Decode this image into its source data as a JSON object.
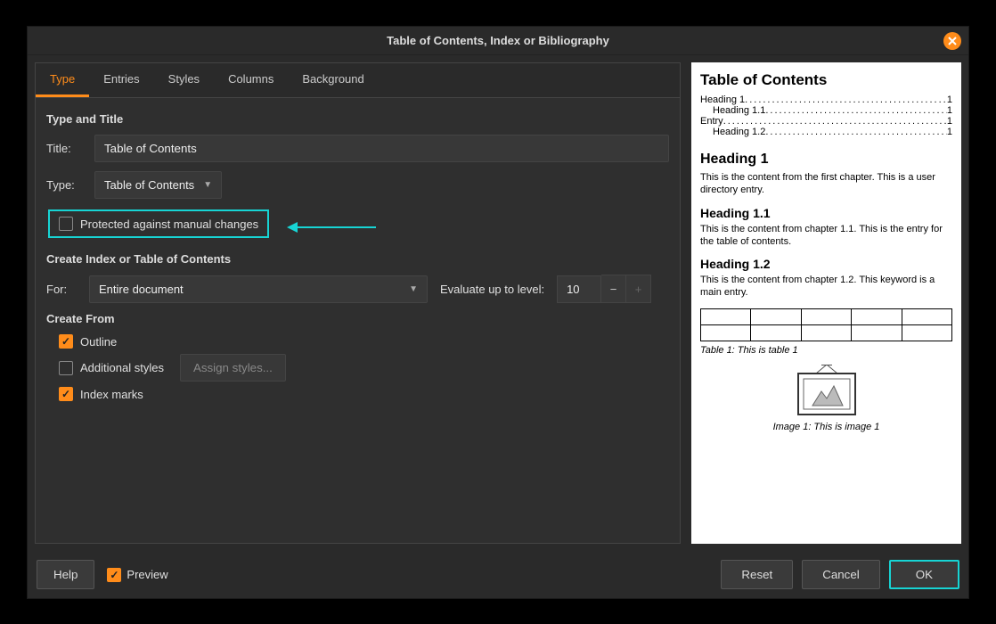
{
  "dialog": {
    "title": "Table of Contents, Index or Bibliography"
  },
  "tabs": {
    "type": "Type",
    "entries": "Entries",
    "styles": "Styles",
    "columns": "Columns",
    "background": "Background"
  },
  "section": {
    "type_and_title": "Type and Title",
    "create_index": "Create Index or Table of Contents",
    "create_from": "Create From"
  },
  "fields": {
    "title_label": "Title:",
    "title_value": "Table of Contents",
    "type_label": "Type:",
    "type_value": "Table of Contents",
    "protected_label": "Protected against manual changes",
    "for_label": "For:",
    "for_value": "Entire document",
    "evaluate_label": "Evaluate up to level:",
    "evaluate_value": "10",
    "outline_label": "Outline",
    "additional_styles_label": "Additional styles",
    "assign_styles_btn": "Assign styles...",
    "index_marks_label": "Index marks"
  },
  "checkboxes": {
    "protected": false,
    "outline": true,
    "additional_styles": false,
    "index_marks": true,
    "preview": true
  },
  "footer": {
    "help": "Help",
    "preview": "Preview",
    "reset": "Reset",
    "cancel": "Cancel",
    "ok": "OK"
  },
  "preview": {
    "toc_title": "Table of Contents",
    "toc": [
      {
        "label": "Heading 1",
        "page": "1",
        "indent": false
      },
      {
        "label": "Heading 1.1",
        "page": "1",
        "indent": true
      },
      {
        "label": "Entry",
        "page": "1",
        "indent": false
      },
      {
        "label": "Heading 1.2",
        "page": "1",
        "indent": true
      }
    ],
    "h1": "Heading 1",
    "p1": "This is the content from the first chapter. This is a user directory entry.",
    "h11": "Heading 1.1",
    "p11": "This is the content from chapter 1.1. This is the entry for the table of contents.",
    "h12": "Heading 1.2",
    "p12": "This is the content from chapter 1.2. This keyword is a main entry.",
    "table_caption": "Table 1: This is table 1",
    "image_caption": "Image 1: This is image 1",
    "table_cols": 5,
    "table_rows": 2
  },
  "colors": {
    "accent": "#ff8c1a",
    "highlight": "#17d4d4"
  }
}
